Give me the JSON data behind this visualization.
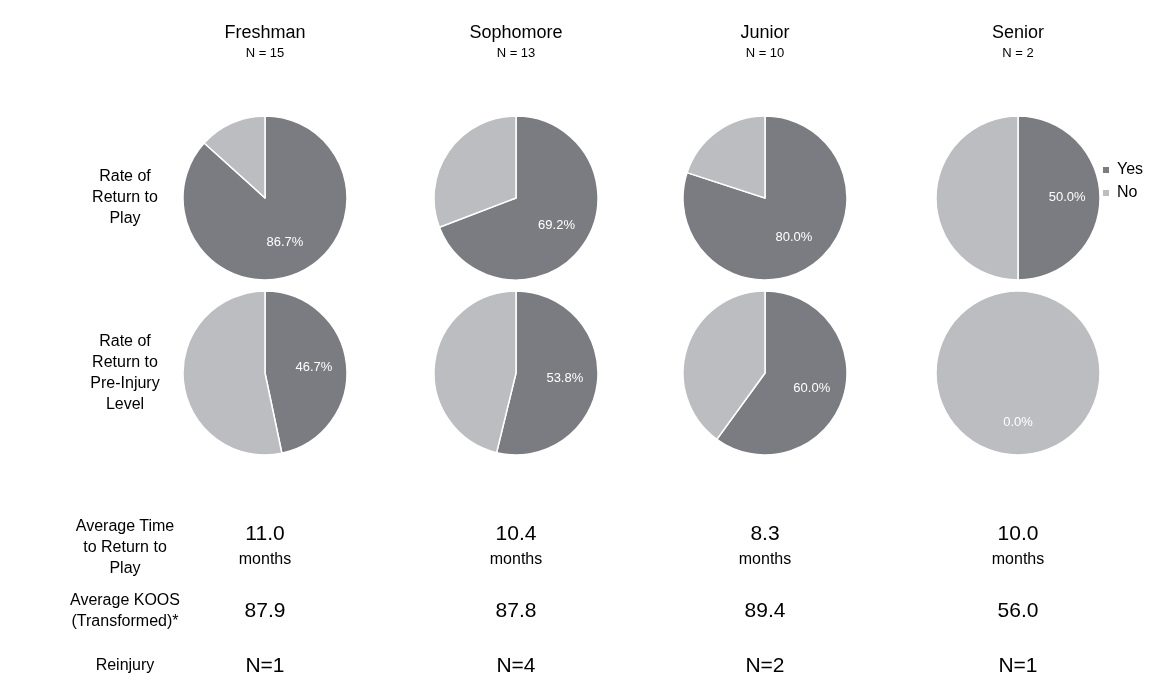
{
  "chart_data": [
    {
      "type": "pie",
      "title": "Freshman",
      "subtitle": "N = 15",
      "ylabel": "Rate of Return to Play",
      "categories": [
        null,
        null
      ],
      "values": [
        86.7,
        13.3
      ],
      "colors": [
        "#7b7c81",
        "#bcbdc1"
      ],
      "value_labels": [
        "86.7%",
        null
      ]
    },
    {
      "type": "pie",
      "title": "Sophomore",
      "subtitle": "N = 13",
      "categories": [
        null,
        null
      ],
      "values": [
        69.2,
        30.8
      ],
      "colors": [
        "#7b7c81",
        "#bcbdc1"
      ],
      "value_labels": [
        "69.2%",
        null
      ]
    },
    {
      "type": "pie",
      "title": "Junior",
      "subtitle": "N = 10",
      "categories": [
        null,
        null
      ],
      "values": [
        80.0,
        20.0
      ],
      "colors": [
        "#7b7c81",
        "#bcbdc1"
      ],
      "value_labels": [
        "80.0%",
        null
      ]
    },
    {
      "type": "pie",
      "title": "Senior",
      "subtitle": "N = 2",
      "categories": [
        "Yes",
        "No"
      ],
      "values": [
        50.0,
        50.0
      ],
      "colors": [
        "#7b7c81",
        "#bcbdc1"
      ],
      "value_labels": [
        "50.0%",
        null
      ],
      "legend": "right"
    },
    {
      "type": "pie",
      "ylabel": "Rate of Return to Pre-Injury Level",
      "categories": [
        null,
        null
      ],
      "values": [
        46.7,
        53.3
      ],
      "colors": [
        "#7b7c81",
        "#bcbdc1"
      ],
      "value_labels": [
        "46.7%",
        null
      ]
    },
    {
      "type": "pie",
      "categories": [
        null,
        null
      ],
      "values": [
        53.8,
        46.2
      ],
      "colors": [
        "#7b7c81",
        "#bcbdc1"
      ],
      "value_labels": [
        "53.8%",
        null
      ]
    },
    {
      "type": "pie",
      "categories": [
        null,
        null
      ],
      "values": [
        60.0,
        40.0
      ],
      "colors": [
        "#7b7c81",
        "#bcbdc1"
      ],
      "value_labels": [
        "60.0%",
        null
      ]
    },
    {
      "type": "pie",
      "categories": [
        null,
        null
      ],
      "values": [
        0.0,
        100.0
      ],
      "colors": [
        "#7b7c81",
        "#bcbdc1"
      ],
      "value_labels": [
        "0.0%",
        null
      ]
    },
    {
      "type": "other",
      "y_categories": [
        "Average Time to Return to Play",
        "Average KOOS (Transformed)*",
        "Reinjury"
      ],
      "cell_labels": [
        [
          "11.0 months",
          "10.4 months",
          "8.3 months",
          "10.0 months"
        ],
        [
          "87.9",
          "87.8",
          "89.4",
          "56.0"
        ],
        [
          "N=1",
          "N=4",
          "N=2",
          "N=1"
        ]
      ]
    }
  ]
}
